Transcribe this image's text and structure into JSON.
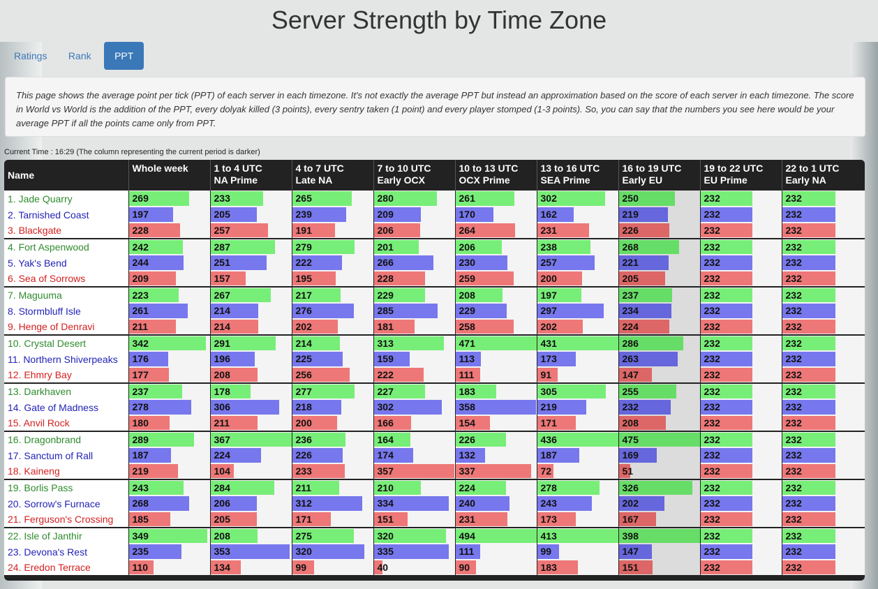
{
  "page_title": "Server Strength by Time Zone",
  "tabs": [
    {
      "label": "Ratings",
      "active": false
    },
    {
      "label": "Rank",
      "active": false
    },
    {
      "label": "PPT",
      "active": true
    }
  ],
  "description": "This page shows the average point per tick (PPT) of each server in each timezone. It's not exactly the average PPT but instead an approximation based on the score of each server in each timezone. The score in World vs World is the addition of the PPT, every dolyak killed (3 points), every sentry taken (1 point) and every player stomped (1-3 points). So, you can say that the numbers you see here would be your average PPT if all the points came only from PPT.",
  "current_time_text": "Current Time : 16:29 (The column representing the current period is darker)",
  "colors": {
    "green": "#77ee77",
    "blue": "#7777ee",
    "red": "#ee7777",
    "header_bg": "#222222",
    "tab_active": "#3a78b8"
  },
  "bar_max": 360,
  "current_column_index": 6,
  "columns": [
    {
      "line1": "Name",
      "line2": ""
    },
    {
      "line1": "Whole week",
      "line2": ""
    },
    {
      "line1": "1 to 4 UTC",
      "line2": "NA Prime"
    },
    {
      "line1": "4 to 7 UTC",
      "line2": "Late NA"
    },
    {
      "line1": "7 to 10 UTC",
      "line2": "Early OCX"
    },
    {
      "line1": "10 to 13 UTC",
      "line2": "OCX Prime"
    },
    {
      "line1": "13 to 16 UTC",
      "line2": "SEA Prime"
    },
    {
      "line1": "16 to 19 UTC",
      "line2": "Early EU"
    },
    {
      "line1": "19 to 22 UTC",
      "line2": "EU Prime"
    },
    {
      "line1": "22 to 1 UTC",
      "line2": "Early NA"
    }
  ],
  "servers": [
    {
      "name": "1. Jade Quarry",
      "values": [
        269,
        233,
        265,
        280,
        261,
        302,
        250,
        232,
        232
      ]
    },
    {
      "name": "2. Tarnished Coast",
      "values": [
        197,
        205,
        239,
        209,
        170,
        162,
        219,
        232,
        232
      ]
    },
    {
      "name": "3. Blackgate",
      "values": [
        228,
        257,
        191,
        206,
        264,
        231,
        226,
        232,
        232
      ]
    },
    {
      "name": "4. Fort Aspenwood",
      "values": [
        242,
        287,
        279,
        201,
        206,
        238,
        268,
        232,
        232
      ]
    },
    {
      "name": "5. Yak's Bend",
      "values": [
        244,
        251,
        222,
        266,
        230,
        257,
        221,
        232,
        232
      ]
    },
    {
      "name": "6. Sea of Sorrows",
      "values": [
        209,
        157,
        195,
        228,
        259,
        200,
        205,
        232,
        232
      ]
    },
    {
      "name": "7. Maguuma",
      "values": [
        223,
        267,
        217,
        229,
        208,
        197,
        237,
        232,
        232
      ]
    },
    {
      "name": "8. Stormbluff Isle",
      "values": [
        261,
        214,
        276,
        285,
        229,
        297,
        234,
        232,
        232
      ]
    },
    {
      "name": "9. Henge of Denravi",
      "values": [
        211,
        214,
        202,
        181,
        258,
        202,
        224,
        232,
        232
      ]
    },
    {
      "name": "10. Crystal Desert",
      "values": [
        342,
        291,
        214,
        313,
        471,
        431,
        286,
        232,
        232
      ]
    },
    {
      "name": "11. Northern Shiverpeaks",
      "values": [
        176,
        196,
        225,
        159,
        113,
        173,
        263,
        232,
        232
      ]
    },
    {
      "name": "12. Ehmry Bay",
      "values": [
        177,
        208,
        256,
        222,
        111,
        91,
        147,
        232,
        232
      ]
    },
    {
      "name": "13. Darkhaven",
      "values": [
        237,
        178,
        277,
        227,
        183,
        305,
        255,
        232,
        232
      ]
    },
    {
      "name": "14. Gate of Madness",
      "values": [
        278,
        306,
        218,
        302,
        358,
        219,
        232,
        232,
        232
      ]
    },
    {
      "name": "15. Anvil Rock",
      "values": [
        180,
        211,
        200,
        166,
        154,
        171,
        208,
        232,
        232
      ]
    },
    {
      "name": "16. Dragonbrand",
      "values": [
        289,
        367,
        236,
        164,
        226,
        436,
        475,
        232,
        232
      ]
    },
    {
      "name": "17. Sanctum of Rall",
      "values": [
        187,
        224,
        226,
        174,
        132,
        187,
        169,
        232,
        232
      ]
    },
    {
      "name": "18. Kaineng",
      "values": [
        219,
        104,
        233,
        357,
        337,
        72,
        51,
        232,
        232
      ]
    },
    {
      "name": "19. Borlis Pass",
      "values": [
        243,
        284,
        211,
        210,
        224,
        278,
        326,
        232,
        232
      ]
    },
    {
      "name": "20. Sorrow's Furnace",
      "values": [
        268,
        206,
        312,
        334,
        240,
        243,
        202,
        232,
        232
      ]
    },
    {
      "name": "21. Ferguson's Crossing",
      "values": [
        185,
        205,
        171,
        151,
        231,
        173,
        167,
        232,
        232
      ]
    },
    {
      "name": "22. Isle of Janthir",
      "values": [
        349,
        208,
        275,
        320,
        494,
        413,
        398,
        232,
        232
      ]
    },
    {
      "name": "23. Devona's Rest",
      "values": [
        235,
        353,
        320,
        335,
        111,
        99,
        147,
        232,
        232
      ]
    },
    {
      "name": "24. Eredon Terrace",
      "values": [
        110,
        134,
        99,
        40,
        90,
        183,
        151,
        232,
        232
      ]
    }
  ]
}
